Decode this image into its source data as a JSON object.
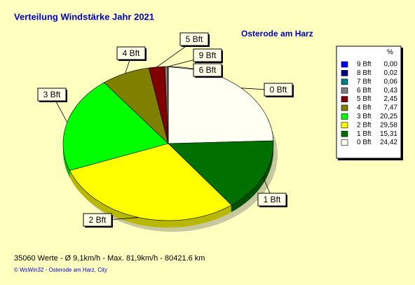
{
  "chart_data": {
    "type": "pie3d",
    "title": "Verteilung Windstärke  Jahr 2021",
    "subtitle": "Osterode am Harz",
    "legend_header": "%",
    "categories": [
      "0 Bft",
      "1 Bft",
      "2 Bft",
      "3 Bft",
      "4 Bft",
      "5 Bft",
      "6 Bft",
      "7 Bft",
      "8 Bft",
      "9 Bft"
    ],
    "values": [
      24.42,
      15.31,
      29.58,
      20.25,
      7.47,
      2.45,
      0.43,
      0.06,
      0.02,
      0.0
    ],
    "value_labels": [
      "24,42",
      "15,31",
      "29,58",
      "20,25",
      "7,47",
      "2,45",
      "0,43",
      "0,06",
      "0,02",
      "0,00"
    ],
    "colors": [
      "#fffff4",
      "#007000",
      "#ffff00",
      "#00ff00",
      "#808000",
      "#800000",
      "#808080",
      "#008080",
      "#000080",
      "#0000ff"
    ],
    "footer": "35060 Werte   -   Ø 9,1km/h  -  Max. 81,9km/h  -   80421.6 km",
    "credit": "© WsWin32  -  Osterode am Harz, City"
  }
}
